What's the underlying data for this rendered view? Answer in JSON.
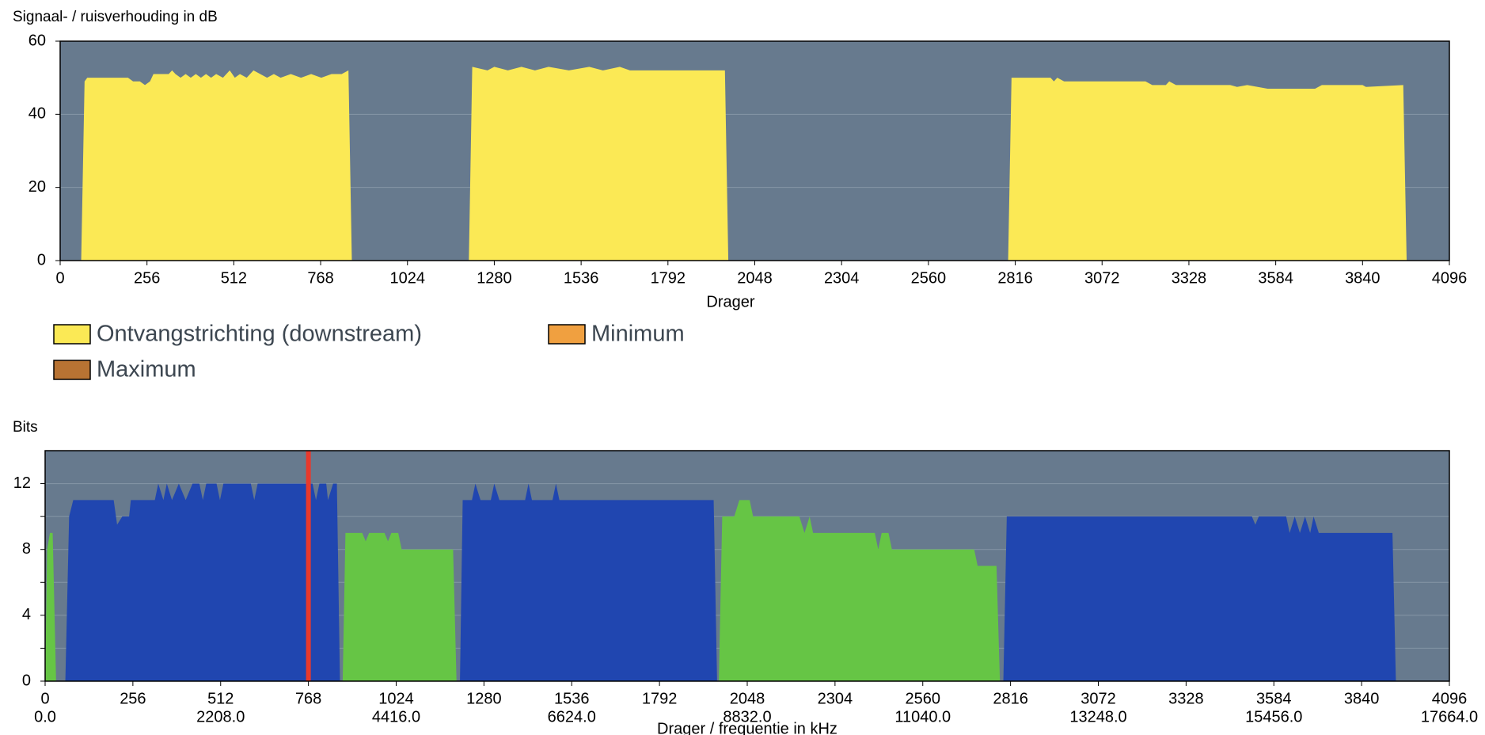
{
  "chart_data": [
    {
      "type": "area",
      "title": "Signaal- / ruisverhouding in dB",
      "x_label": "Drager",
      "xlim": [
        0,
        4096
      ],
      "xticks": [
        0,
        256,
        512,
        768,
        1024,
        1280,
        1536,
        1792,
        2048,
        2304,
        2560,
        2816,
        3072,
        3328,
        3584,
        3840,
        4096
      ],
      "ylim": [
        0,
        60
      ],
      "yticks": [
        0,
        20,
        40,
        60
      ],
      "grid": true,
      "background": "#677a8e",
      "legend": [
        {
          "name": "Ontvangstrichting (downstream)",
          "color": "#fbe955"
        },
        {
          "name": "Minimum",
          "color": "#f0a040"
        },
        {
          "name": "Maximum",
          "color": "#b87333"
        }
      ],
      "series": [
        {
          "color": "#fbe955",
          "x": [
            62,
            72,
            80,
            200,
            215,
            235,
            250,
            265,
            275,
            320,
            330,
            340,
            355,
            370,
            385,
            400,
            415,
            430,
            445,
            460,
            480,
            500,
            515,
            530,
            550,
            570,
            590,
            610,
            630,
            650,
            680,
            710,
            740,
            770,
            800,
            830,
            850,
            860,
            1000,
            1205,
            1215,
            1260,
            1280,
            1320,
            1360,
            1400,
            1440,
            1500,
            1560,
            1600,
            1650,
            1680,
            1960,
            1970,
            2400,
            2795,
            2805,
            2920,
            2930,
            2940,
            2960,
            3200,
            3220,
            3260,
            3270,
            3290,
            3450,
            3470,
            3500,
            3560,
            3700,
            3720,
            3840,
            3850,
            3960,
            3970
          ],
          "values": [
            0,
            49,
            50,
            50,
            49,
            49,
            48,
            49,
            51,
            51,
            52,
            51,
            50,
            51,
            50,
            51,
            50,
            51,
            50,
            51,
            50,
            52,
            50,
            51,
            50,
            52,
            51,
            50,
            51,
            50,
            51,
            50,
            51,
            50,
            51,
            51,
            52,
            0,
            null,
            0,
            53,
            52,
            53,
            52,
            53,
            52,
            53,
            52,
            53,
            52,
            53,
            52,
            52,
            0,
            null,
            0,
            50,
            50,
            49,
            50,
            49,
            49,
            48,
            48,
            49,
            48,
            48,
            47.5,
            48,
            47,
            47,
            48,
            48,
            47.5,
            48,
            0
          ]
        }
      ]
    },
    {
      "type": "area",
      "title": "Bits",
      "x_label": "Drager / frequentie in kHz",
      "xlim": [
        0,
        4096
      ],
      "xticks": [
        0,
        256,
        512,
        768,
        1024,
        1280,
        1536,
        1792,
        2048,
        2304,
        2560,
        2816,
        3072,
        3328,
        3584,
        3840,
        4096
      ],
      "x2ticks": [
        {
          "value": 0,
          "label": "0.0"
        },
        {
          "value": 512,
          "label": "2208.0"
        },
        {
          "value": 1024,
          "label": "4416.0"
        },
        {
          "value": 1536,
          "label": "6624.0"
        },
        {
          "value": 2048,
          "label": "8832.0"
        },
        {
          "value": 2560,
          "label": "11040.0"
        },
        {
          "value": 3072,
          "label": "13248.0"
        },
        {
          "value": 3584,
          "label": "15456.0"
        },
        {
          "value": 4096,
          "label": "17664.0"
        }
      ],
      "ylim": [
        0,
        14
      ],
      "yticks": [
        0,
        4,
        8,
        12
      ],
      "minor_yticks": [
        2,
        6,
        10
      ],
      "grid": true,
      "background": "#677a8e",
      "marker_x": 768,
      "marker_color": "#e8392c",
      "series": [
        {
          "color": "#2046b0",
          "x": [
            59,
            70,
            82,
            200,
            210,
            225,
            245,
            250,
            320,
            330,
            345,
            355,
            370,
            390,
            410,
            430,
            450,
            460,
            470,
            500,
            510,
            520,
            600,
            610,
            620,
            780,
            790,
            800,
            820,
            825,
            840,
            851,
            860,
            1000,
            1210,
            1218,
            1245,
            1255,
            1270,
            1300,
            1310,
            1325,
            1400,
            1410,
            1420,
            1480,
            1490,
            1500,
            1950,
            1960,
            2400,
            2795,
            2805,
            3520,
            3530,
            3540,
            3620,
            3630,
            3645,
            3660,
            3675,
            3690,
            3700,
            3715,
            3930,
            3940
          ],
          "values": [
            0,
            10,
            11,
            11,
            9.5,
            10,
            10,
            11,
            11,
            12,
            11,
            12,
            11,
            12,
            11,
            12,
            12,
            11,
            12,
            12,
            11,
            12,
            12,
            11,
            12,
            12,
            11,
            12,
            12,
            11,
            12,
            12,
            0,
            null,
            0,
            11,
            11,
            12,
            11,
            11,
            12,
            11,
            11,
            12,
            11,
            11,
            12,
            11,
            11,
            0,
            null,
            0,
            10,
            10,
            9.5,
            10,
            10,
            9,
            10,
            9,
            10,
            9,
            10,
            9,
            9,
            0
          ]
        },
        {
          "color": "#66c545",
          "x": [
            0,
            6,
            14,
            22,
            32,
            450,
            868,
            876,
            925,
            935,
            945,
            990,
            1000,
            1010,
            1030,
            1040,
            1190,
            1200,
            1600,
            1965,
            1975,
            2010,
            2025,
            2055,
            2065,
            2200,
            2215,
            2230,
            2240,
            2420,
            2430,
            2440,
            2460,
            2470,
            2710,
            2720,
            2775,
            2785
          ],
          "values": [
            0,
            8,
            9,
            9,
            0,
            null,
            0,
            9,
            9,
            8.5,
            9,
            9,
            8.5,
            9,
            9,
            8,
            8,
            0,
            null,
            0,
            10,
            10,
            11,
            11,
            10,
            10,
            9,
            10,
            9,
            9,
            8,
            9,
            9,
            8,
            8,
            7,
            7,
            0
          ]
        }
      ]
    }
  ]
}
